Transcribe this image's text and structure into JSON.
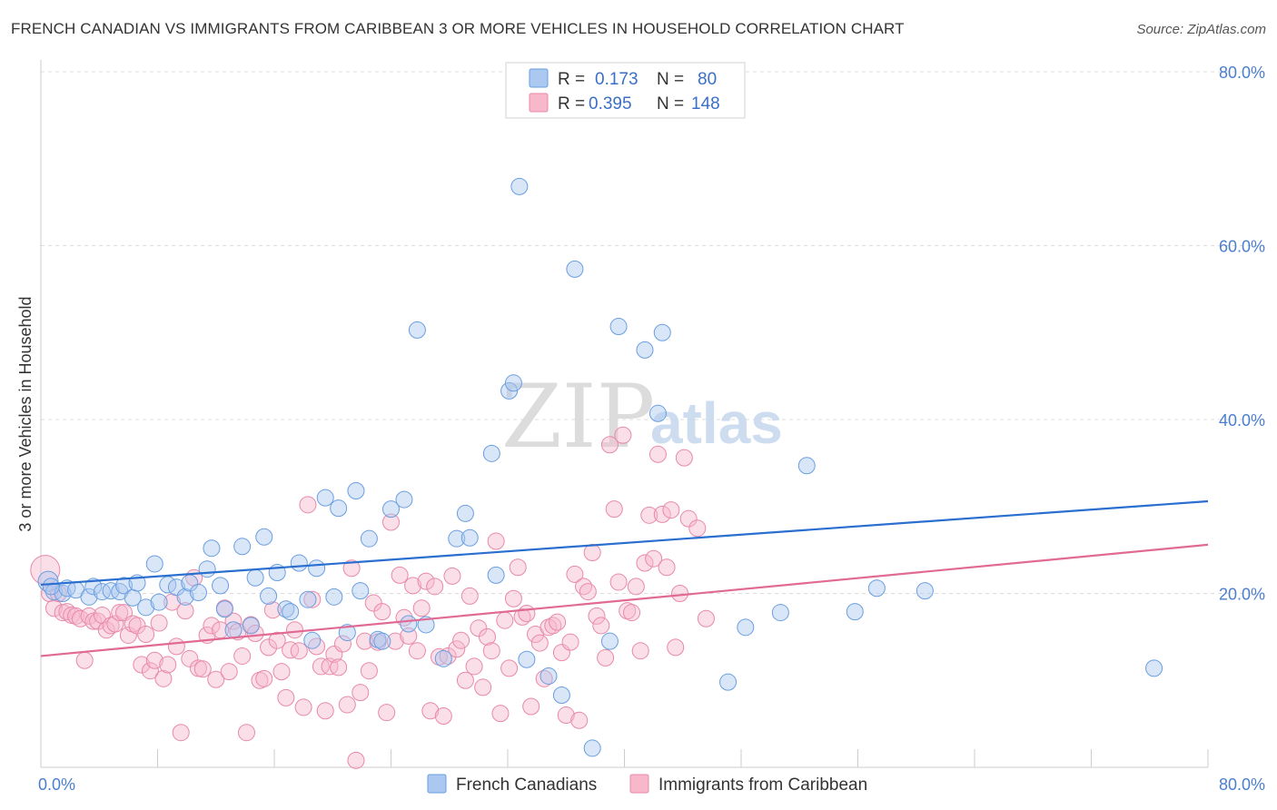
{
  "title": "FRENCH CANADIAN VS IMMIGRANTS FROM CARIBBEAN 3 OR MORE VEHICLES IN HOUSEHOLD CORRELATION CHART",
  "source": "Source: ZipAtlas.com",
  "watermark": {
    "zip": "ZIP",
    "atlas": "atlas"
  },
  "legend_box": {
    "rows": [
      {
        "r_label": "R =",
        "r_value": "0.173",
        "n_label": "N =",
        "n_value": "80",
        "color": "#aac8f0"
      },
      {
        "r_label": "R =",
        "r_value": "0.395",
        "n_label": "N =",
        "n_value": "148",
        "color": "#f7b8cb"
      }
    ]
  },
  "bottom_legend": [
    {
      "label": "French Canadians",
      "color": "#aac8f0"
    },
    {
      "label": "Immigrants from Caribbean",
      "color": "#f7b8cb"
    }
  ],
  "chart_data": {
    "type": "scatter",
    "title": "FRENCH CANADIAN VS IMMIGRANTS FROM CARIBBEAN 3 OR MORE VEHICLES IN HOUSEHOLD CORRELATION CHART",
    "ylabel": "3 or more Vehicles in Household",
    "xlim": [
      0,
      80
    ],
    "ylim": [
      0,
      80
    ],
    "x_tick_labels": [
      "0.0%",
      "80.0%"
    ],
    "y_tick_labels": [
      "20.0%",
      "40.0%",
      "60.0%",
      "80.0%"
    ],
    "y_ticks": [
      20,
      40,
      60,
      80
    ],
    "grid": true,
    "legend_position": "top-center",
    "colors": {
      "blue_fill": "#aac8f0",
      "blue_stroke": "#6a9ee0",
      "blue_line": "#2a6fd0",
      "pink_fill": "#f7b8cb",
      "pink_stroke": "#e889a8",
      "pink_line": "#e06a94"
    },
    "series": [
      {
        "name": "French Canadians",
        "trend": [
          [
            0,
            21.0
          ],
          [
            80,
            30.6
          ]
        ],
        "points": [
          [
            0.5,
            21.4
          ],
          [
            0.9,
            20.2
          ],
          [
            1.5,
            20.0
          ],
          [
            1.8,
            20.6
          ],
          [
            2.4,
            20.4
          ],
          [
            3.3,
            19.6
          ],
          [
            3.6,
            20.8
          ],
          [
            4.2,
            20.2
          ],
          [
            4.8,
            20.3
          ],
          [
            5.4,
            20.2
          ],
          [
            5.7,
            20.9
          ],
          [
            6.3,
            19.5
          ],
          [
            6.6,
            21.2
          ],
          [
            7.2,
            18.4
          ],
          [
            7.8,
            23.4
          ],
          [
            8.1,
            19.0
          ],
          [
            8.7,
            21.0
          ],
          [
            9.3,
            20.7
          ],
          [
            9.9,
            19.6
          ],
          [
            10.2,
            21.2
          ],
          [
            10.8,
            20.1
          ],
          [
            11.4,
            22.8
          ],
          [
            11.7,
            25.2
          ],
          [
            12.3,
            20.9
          ],
          [
            12.6,
            18.2
          ],
          [
            13.2,
            15.8
          ],
          [
            13.8,
            25.4
          ],
          [
            14.4,
            16.3
          ],
          [
            14.7,
            21.8
          ],
          [
            15.3,
            26.5
          ],
          [
            15.6,
            19.7
          ],
          [
            16.2,
            22.4
          ],
          [
            16.8,
            18.2
          ],
          [
            17.1,
            17.9
          ],
          [
            17.7,
            23.5
          ],
          [
            18.3,
            19.3
          ],
          [
            18.6,
            14.6
          ],
          [
            18.9,
            22.9
          ],
          [
            19.5,
            31.0
          ],
          [
            20.1,
            19.6
          ],
          [
            20.4,
            29.8
          ],
          [
            21.0,
            15.5
          ],
          [
            21.6,
            31.8
          ],
          [
            21.9,
            20.3
          ],
          [
            22.5,
            26.3
          ],
          [
            23.1,
            14.7
          ],
          [
            23.4,
            14.5
          ],
          [
            24.0,
            29.7
          ],
          [
            24.9,
            30.8
          ],
          [
            25.2,
            16.5
          ],
          [
            25.8,
            50.3
          ],
          [
            26.4,
            16.4
          ],
          [
            27.6,
            12.5
          ],
          [
            28.5,
            26.3
          ],
          [
            29.1,
            29.2
          ],
          [
            29.4,
            26.4
          ],
          [
            30.9,
            36.1
          ],
          [
            31.2,
            22.1
          ],
          [
            32.1,
            43.3
          ],
          [
            32.4,
            44.2
          ],
          [
            32.8,
            66.8
          ],
          [
            33.3,
            12.4
          ],
          [
            34.8,
            10.5
          ],
          [
            35.7,
            8.3
          ],
          [
            36.6,
            57.3
          ],
          [
            37.8,
            2.2
          ],
          [
            39.0,
            14.5
          ],
          [
            39.6,
            50.7
          ],
          [
            41.4,
            48.0
          ],
          [
            42.3,
            40.7
          ],
          [
            42.6,
            50.0
          ],
          [
            47.1,
            9.8
          ],
          [
            48.3,
            16.1
          ],
          [
            50.7,
            17.8
          ],
          [
            52.5,
            34.7
          ],
          [
            55.8,
            17.9
          ],
          [
            57.3,
            20.6
          ],
          [
            60.6,
            20.3
          ],
          [
            76.3,
            11.4
          ],
          [
            0.7,
            20.8
          ]
        ]
      },
      {
        "name": "Immigrants from Caribbean",
        "trend": [
          [
            0,
            12.8
          ],
          [
            80,
            25.6
          ]
        ],
        "points": [
          [
            0.3,
            22.7
          ],
          [
            0.6,
            20.0
          ],
          [
            0.9,
            18.3
          ],
          [
            1.2,
            20.0
          ],
          [
            1.5,
            17.8
          ],
          [
            1.8,
            17.9
          ],
          [
            2.1,
            17.5
          ],
          [
            2.4,
            17.4
          ],
          [
            2.7,
            17.1
          ],
          [
            3.0,
            12.3
          ],
          [
            3.3,
            17.4
          ],
          [
            3.6,
            16.8
          ],
          [
            3.9,
            16.8
          ],
          [
            4.2,
            17.5
          ],
          [
            4.5,
            15.8
          ],
          [
            4.8,
            16.3
          ],
          [
            5.1,
            16.5
          ],
          [
            5.4,
            17.8
          ],
          [
            5.7,
            17.8
          ],
          [
            6.0,
            15.2
          ],
          [
            6.3,
            16.5
          ],
          [
            6.6,
            16.3
          ],
          [
            6.9,
            11.8
          ],
          [
            7.2,
            15.3
          ],
          [
            7.5,
            11.1
          ],
          [
            7.8,
            12.3
          ],
          [
            8.1,
            16.6
          ],
          [
            8.4,
            10.2
          ],
          [
            8.7,
            11.8
          ],
          [
            9.0,
            19.0
          ],
          [
            9.3,
            13.9
          ],
          [
            9.6,
            4.0
          ],
          [
            9.9,
            18.0
          ],
          [
            10.2,
            12.5
          ],
          [
            10.5,
            21.8
          ],
          [
            10.8,
            11.4
          ],
          [
            11.1,
            11.3
          ],
          [
            11.4,
            15.2
          ],
          [
            11.7,
            16.3
          ],
          [
            12.0,
            10.1
          ],
          [
            12.3,
            15.8
          ],
          [
            12.6,
            18.3
          ],
          [
            12.9,
            11.0
          ],
          [
            13.2,
            16.8
          ],
          [
            13.5,
            15.6
          ],
          [
            13.8,
            12.8
          ],
          [
            14.1,
            4.0
          ],
          [
            14.4,
            16.4
          ],
          [
            14.7,
            15.4
          ],
          [
            15.0,
            10.0
          ],
          [
            15.3,
            10.2
          ],
          [
            15.6,
            13.8
          ],
          [
            15.9,
            18.1
          ],
          [
            16.2,
            14.6
          ],
          [
            16.5,
            11.0
          ],
          [
            16.8,
            8.0
          ],
          [
            17.1,
            13.5
          ],
          [
            17.4,
            15.8
          ],
          [
            17.7,
            13.4
          ],
          [
            18.0,
            6.9
          ],
          [
            18.3,
            30.2
          ],
          [
            18.6,
            19.3
          ],
          [
            18.9,
            13.9
          ],
          [
            19.2,
            11.6
          ],
          [
            19.5,
            6.5
          ],
          [
            19.8,
            11.6
          ],
          [
            20.1,
            13.0
          ],
          [
            20.4,
            11.5
          ],
          [
            20.7,
            14.2
          ],
          [
            21.0,
            7.2
          ],
          [
            21.3,
            22.9
          ],
          [
            21.6,
            0.8
          ],
          [
            21.9,
            8.6
          ],
          [
            22.2,
            14.5
          ],
          [
            22.5,
            11.1
          ],
          [
            22.8,
            18.9
          ],
          [
            23.1,
            14.4
          ],
          [
            23.4,
            17.9
          ],
          [
            23.7,
            6.3
          ],
          [
            24.0,
            28.2
          ],
          [
            24.3,
            14.5
          ],
          [
            24.6,
            22.1
          ],
          [
            24.9,
            17.2
          ],
          [
            25.2,
            15.1
          ],
          [
            25.5,
            20.9
          ],
          [
            25.8,
            13.4
          ],
          [
            26.1,
            18.3
          ],
          [
            26.4,
            21.4
          ],
          [
            26.7,
            6.5
          ],
          [
            27.0,
            20.8
          ],
          [
            27.3,
            12.7
          ],
          [
            27.6,
            5.9
          ],
          [
            27.9,
            12.8
          ],
          [
            28.2,
            22.0
          ],
          [
            28.5,
            13.6
          ],
          [
            28.8,
            14.6
          ],
          [
            29.1,
            10.0
          ],
          [
            29.4,
            19.7
          ],
          [
            29.7,
            11.6
          ],
          [
            30.0,
            16.0
          ],
          [
            30.3,
            9.2
          ],
          [
            30.6,
            15.0
          ],
          [
            30.9,
            13.4
          ],
          [
            31.2,
            26.0
          ],
          [
            31.5,
            6.2
          ],
          [
            31.8,
            16.9
          ],
          [
            32.1,
            11.4
          ],
          [
            32.4,
            19.4
          ],
          [
            32.7,
            23.0
          ],
          [
            33.0,
            17.3
          ],
          [
            33.3,
            17.7
          ],
          [
            33.6,
            7.0
          ],
          [
            33.9,
            15.3
          ],
          [
            34.2,
            14.3
          ],
          [
            34.5,
            10.2
          ],
          [
            34.8,
            16.1
          ],
          [
            35.1,
            16.3
          ],
          [
            35.4,
            16.7
          ],
          [
            35.7,
            13.2
          ],
          [
            36.0,
            6.0
          ],
          [
            36.3,
            14.4
          ],
          [
            36.6,
            22.2
          ],
          [
            36.9,
            5.4
          ],
          [
            37.2,
            20.8
          ],
          [
            37.5,
            20.2
          ],
          [
            37.8,
            24.7
          ],
          [
            38.1,
            17.4
          ],
          [
            38.4,
            16.3
          ],
          [
            38.7,
            12.6
          ],
          [
            39.0,
            37.1
          ],
          [
            39.3,
            29.7
          ],
          [
            39.6,
            21.3
          ],
          [
            39.9,
            38.2
          ],
          [
            40.2,
            18.0
          ],
          [
            40.5,
            17.8
          ],
          [
            40.8,
            20.8
          ],
          [
            41.1,
            13.4
          ],
          [
            41.4,
            23.5
          ],
          [
            41.7,
            29.0
          ],
          [
            42.0,
            24.0
          ],
          [
            42.3,
            36.0
          ],
          [
            42.6,
            29.1
          ],
          [
            42.9,
            23.0
          ],
          [
            43.2,
            29.6
          ],
          [
            43.5,
            13.8
          ],
          [
            43.8,
            20.0
          ],
          [
            44.1,
            35.6
          ],
          [
            44.4,
            28.6
          ],
          [
            45.0,
            27.5
          ],
          [
            45.6,
            17.1
          ]
        ]
      }
    ]
  }
}
